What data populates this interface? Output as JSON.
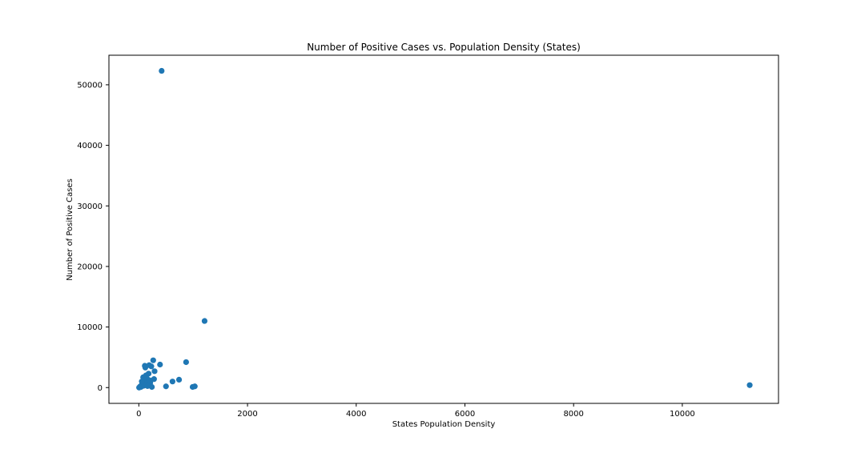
{
  "chart_data": {
    "type": "scatter",
    "title": "Number of Positive Cases vs. Population Density (States)",
    "xlabel": "States Population Density",
    "ylabel": "Number of Positive Cases",
    "xlim": [
      -550,
      11770
    ],
    "ylim": [
      -2610,
      54880
    ],
    "xticks": [
      0,
      2000,
      4000,
      6000,
      8000,
      10000
    ],
    "yticks": [
      0,
      10000,
      20000,
      30000,
      40000,
      50000
    ],
    "grid": false,
    "marker_color": "#1f77b4",
    "points": [
      {
        "x": 420,
        "y": 52300
      },
      {
        "x": 1210,
        "y": 11000
      },
      {
        "x": 11240,
        "y": 400
      },
      {
        "x": 870,
        "y": 4200
      },
      {
        "x": 265,
        "y": 4500
      },
      {
        "x": 390,
        "y": 3800
      },
      {
        "x": 110,
        "y": 3600
      },
      {
        "x": 120,
        "y": 3300
      },
      {
        "x": 190,
        "y": 3700
      },
      {
        "x": 230,
        "y": 3500
      },
      {
        "x": 290,
        "y": 2700
      },
      {
        "x": 180,
        "y": 2300
      },
      {
        "x": 130,
        "y": 2000
      },
      {
        "x": 80,
        "y": 1700
      },
      {
        "x": 150,
        "y": 1500
      },
      {
        "x": 280,
        "y": 1400
      },
      {
        "x": 740,
        "y": 1300
      },
      {
        "x": 620,
        "y": 1000
      },
      {
        "x": 100,
        "y": 900
      },
      {
        "x": 210,
        "y": 800
      },
      {
        "x": 60,
        "y": 500
      },
      {
        "x": 170,
        "y": 400
      },
      {
        "x": 500,
        "y": 200
      },
      {
        "x": 990,
        "y": 100
      },
      {
        "x": 1030,
        "y": 200
      },
      {
        "x": 40,
        "y": 100
      },
      {
        "x": 15,
        "y": 50
      },
      {
        "x": 25,
        "y": 200
      },
      {
        "x": 90,
        "y": 300
      },
      {
        "x": 140,
        "y": 700
      },
      {
        "x": 240,
        "y": 100
      },
      {
        "x": 200,
        "y": 1200
      },
      {
        "x": 5,
        "y": 0
      },
      {
        "x": 55,
        "y": 1000
      },
      {
        "x": 160,
        "y": 250
      }
    ]
  }
}
